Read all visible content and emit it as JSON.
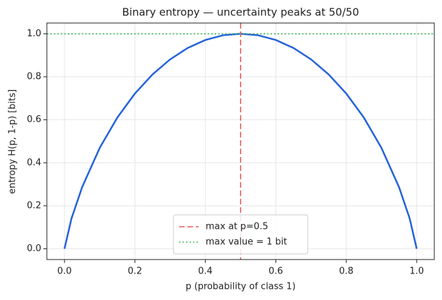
{
  "chart_data": {
    "type": "line",
    "title": "Binary entropy — uncertainty peaks at 50/50",
    "xlabel": "p  (probability of class 1)",
    "ylabel": "entropy  H(p, 1-p)  [bits]",
    "x": [
      0,
      0.02,
      0.05,
      0.1,
      0.15,
      0.2,
      0.25,
      0.3,
      0.35,
      0.4,
      0.45,
      0.5,
      0.55,
      0.6,
      0.65,
      0.7,
      0.75,
      0.8,
      0.85,
      0.9,
      0.95,
      0.98,
      1
    ],
    "values": [
      0,
      0.141,
      0.286,
      0.469,
      0.61,
      0.722,
      0.811,
      0.881,
      0.934,
      0.971,
      0.993,
      1,
      0.993,
      0.971,
      0.934,
      0.881,
      0.811,
      0.722,
      0.61,
      0.469,
      0.286,
      0.141,
      0
    ],
    "color": "#2563d9",
    "vlines": [
      {
        "x": 0.5,
        "name": "max at p=0.5",
        "color": "#e85a5a",
        "style": "dashed"
      }
    ],
    "hlines": [
      {
        "y": 1,
        "name": "max value = 1 bit",
        "color": "#3cba5a",
        "style": "dotted"
      }
    ],
    "xlim": [
      -0.05,
      1.05
    ],
    "ylim": [
      -0.05,
      1.05
    ],
    "xticks": [
      {
        "value": 0,
        "label": "0.0"
      },
      0.2,
      0.4,
      0.6,
      0.8,
      {
        "value": 1,
        "label": "1.0"
      }
    ],
    "yticks": [
      {
        "value": 0,
        "label": "0.0"
      },
      0.2,
      0.4,
      0.6,
      0.8,
      {
        "value": 1,
        "label": "1.0"
      }
    ],
    "grid": true,
    "legend": "lower center"
  }
}
